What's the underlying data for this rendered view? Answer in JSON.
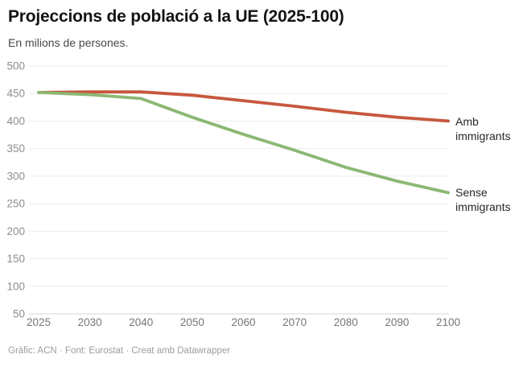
{
  "header": {
    "title": "Projeccions de població a la UE (2025-100)",
    "subtitle": "En milions de persones."
  },
  "footer": {
    "credit": "Gràfic: ACN · Font: Eurostat · Creat amb Datawrapper"
  },
  "colors": {
    "amb_immigrants": "#c7573d",
    "sense_immigrants": "#8bb873",
    "gridline": "#ebebeb",
    "baseline": "#d6d6d6",
    "y_tick_text": "#8e8e8e",
    "x_tick_text": "#767676",
    "annotation_text": "#262626"
  },
  "chart_data": {
    "type": "line",
    "title": "Projeccions de població a la UE (2025-100)",
    "subtitle": "En milions de persones.",
    "categories": [
      "2025",
      "2030",
      "2040",
      "2050",
      "2060",
      "2070",
      "2080",
      "2090",
      "2100"
    ],
    "series": [
      {
        "name": "Amb immigrants",
        "color": "#c7573d",
        "values": [
          452,
          453,
          453,
          447,
          437,
          427,
          416,
          407,
          400
        ]
      },
      {
        "name": "Sense immigrants",
        "color": "#8bb873",
        "values": [
          452,
          448,
          441,
          407,
          376,
          347,
          316,
          291,
          270
        ]
      }
    ],
    "y_ticks": [
      50,
      100,
      150,
      200,
      250,
      300,
      350,
      400,
      450,
      500
    ],
    "ylim": [
      50,
      500
    ],
    "xlabel": "",
    "ylabel": "En milions de persones",
    "grid": true,
    "legend_position": "right-edge-labels"
  }
}
